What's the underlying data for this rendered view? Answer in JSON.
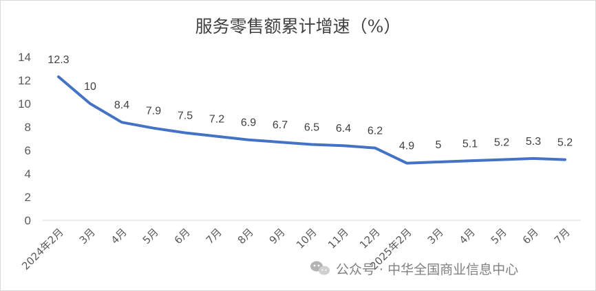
{
  "chart_data": {
    "type": "line",
    "title": "服务零售额累计增速（%）",
    "categories": [
      "2024年2月",
      "3月",
      "4月",
      "5月",
      "6月",
      "7月",
      "8月",
      "9月",
      "10月",
      "11月",
      "12月",
      "2025年2月",
      "3月",
      "4月",
      "5月",
      "6月",
      "7月"
    ],
    "series": [
      {
        "values": [
          12.3,
          10,
          8.4,
          7.9,
          7.5,
          7.2,
          6.9,
          6.7,
          6.5,
          6.4,
          6.2,
          4.9,
          5,
          5.1,
          5.2,
          5.3,
          5.2
        ]
      }
    ],
    "data_labels": [
      "12.3",
      "10",
      "8.4",
      "7.9",
      "7.5",
      "7.2",
      "6.9",
      "6.7",
      "6.5",
      "6.4",
      "6.2",
      "4.9",
      "5",
      "5.1",
      "5.2",
      "5.3",
      "5.2"
    ],
    "y_ticks": [
      "0",
      "2",
      "4",
      "6",
      "8",
      "10",
      "12",
      "14"
    ],
    "ylim": [
      0,
      14
    ],
    "grid": false,
    "legend": "none",
    "line_color": "#4472c4"
  },
  "watermark": {
    "icon": "wechat-icon",
    "text": "公众号 · 中华全国商业信息中心"
  }
}
